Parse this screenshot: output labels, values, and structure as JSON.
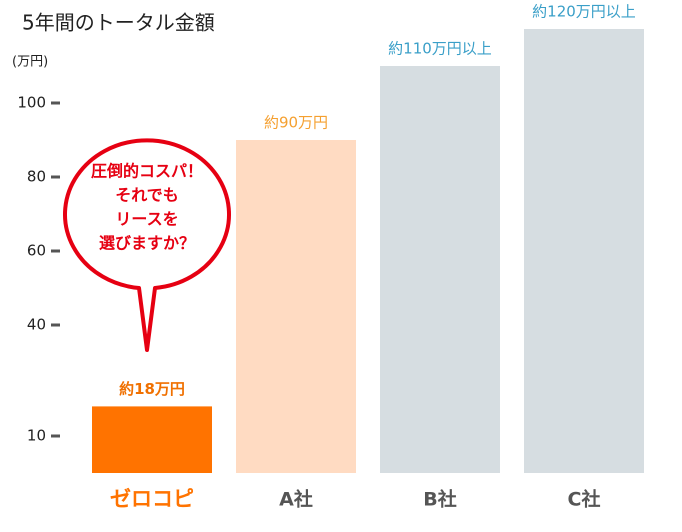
{
  "chart_data": {
    "type": "bar",
    "title": "5年間のトータル金額",
    "y_unit": "(万円)",
    "categories": [
      "ゼロコピ",
      "A社",
      "B社",
      "C社"
    ],
    "values": [
      18,
      90,
      110,
      120
    ],
    "value_labels": [
      "約18万円",
      "約90万円",
      "約110万円以上",
      "約120万円以上"
    ],
    "colors": [
      "#ff7300",
      "#ffdbc2",
      "#d6dde1",
      "#d6dde1"
    ],
    "value_label_colors": [
      "#f07000",
      "#f5a030",
      "#3a9fc8",
      "#3a9fc8"
    ],
    "category_colors": [
      "#ff7300",
      "#555555",
      "#555555",
      "#555555"
    ],
    "ylim": [
      0,
      125
    ],
    "yticks": [
      10,
      40,
      60,
      80,
      100
    ],
    "annotation": {
      "lines": [
        "圧倒的コスパ！",
        "それでも",
        "リースを",
        "選びますか？"
      ],
      "color": "#e60012"
    }
  }
}
